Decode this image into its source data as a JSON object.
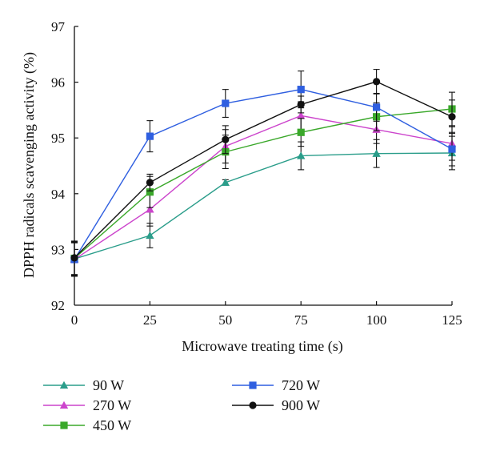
{
  "chart_data": {
    "type": "line",
    "title": "",
    "xlabel": "Microwave treating time (s)",
    "ylabel": "DPPH radicals scavenging activity (%)",
    "x": [
      0,
      25,
      50,
      75,
      100,
      125
    ],
    "xticks": [
      "0",
      "25",
      "50",
      "75",
      "100",
      "125"
    ],
    "yticks": [
      "92",
      "93",
      "94",
      "95",
      "96",
      "97"
    ],
    "xlim": [
      0,
      125
    ],
    "ylim": [
      92,
      97
    ],
    "grid": false,
    "legend_position": "bottom",
    "series": [
      {
        "name": "90 W",
        "color": "#2a9d8a",
        "marker": "triangle",
        "values": [
          92.83,
          93.25,
          94.2,
          94.68,
          94.72,
          94.73
        ],
        "errors": [
          0.3,
          0.22,
          0.05,
          0.25,
          0.25,
          0.3
        ]
      },
      {
        "name": "270 W",
        "color": "#cc44cc",
        "marker": "triangle",
        "values": [
          92.82,
          93.72,
          94.85,
          95.4,
          95.15,
          94.9
        ],
        "errors": [
          0.3,
          0.3,
          0.3,
          0.25,
          0.25,
          0.3
        ]
      },
      {
        "name": "450 W",
        "color": "#3aa82a",
        "marker": "square",
        "values": [
          92.84,
          94.03,
          94.75,
          95.1,
          95.38,
          95.52
        ],
        "errors": [
          0.3,
          0.28,
          0.3,
          0.25,
          0.25,
          0.3
        ]
      },
      {
        "name": "720 W",
        "color": "#2f5fe0",
        "marker": "square",
        "values": [
          92.82,
          95.03,
          95.62,
          95.87,
          95.55,
          94.8
        ],
        "errors": [
          0.3,
          0.28,
          0.25,
          0.33,
          0.25,
          0.3
        ]
      },
      {
        "name": "900 W",
        "color": "#111111",
        "marker": "circle",
        "values": [
          92.85,
          94.2,
          94.97,
          95.6,
          96.01,
          95.38
        ],
        "errors": [
          0.3,
          0.15,
          0.25,
          0.15,
          0.22,
          0.3
        ]
      }
    ]
  }
}
